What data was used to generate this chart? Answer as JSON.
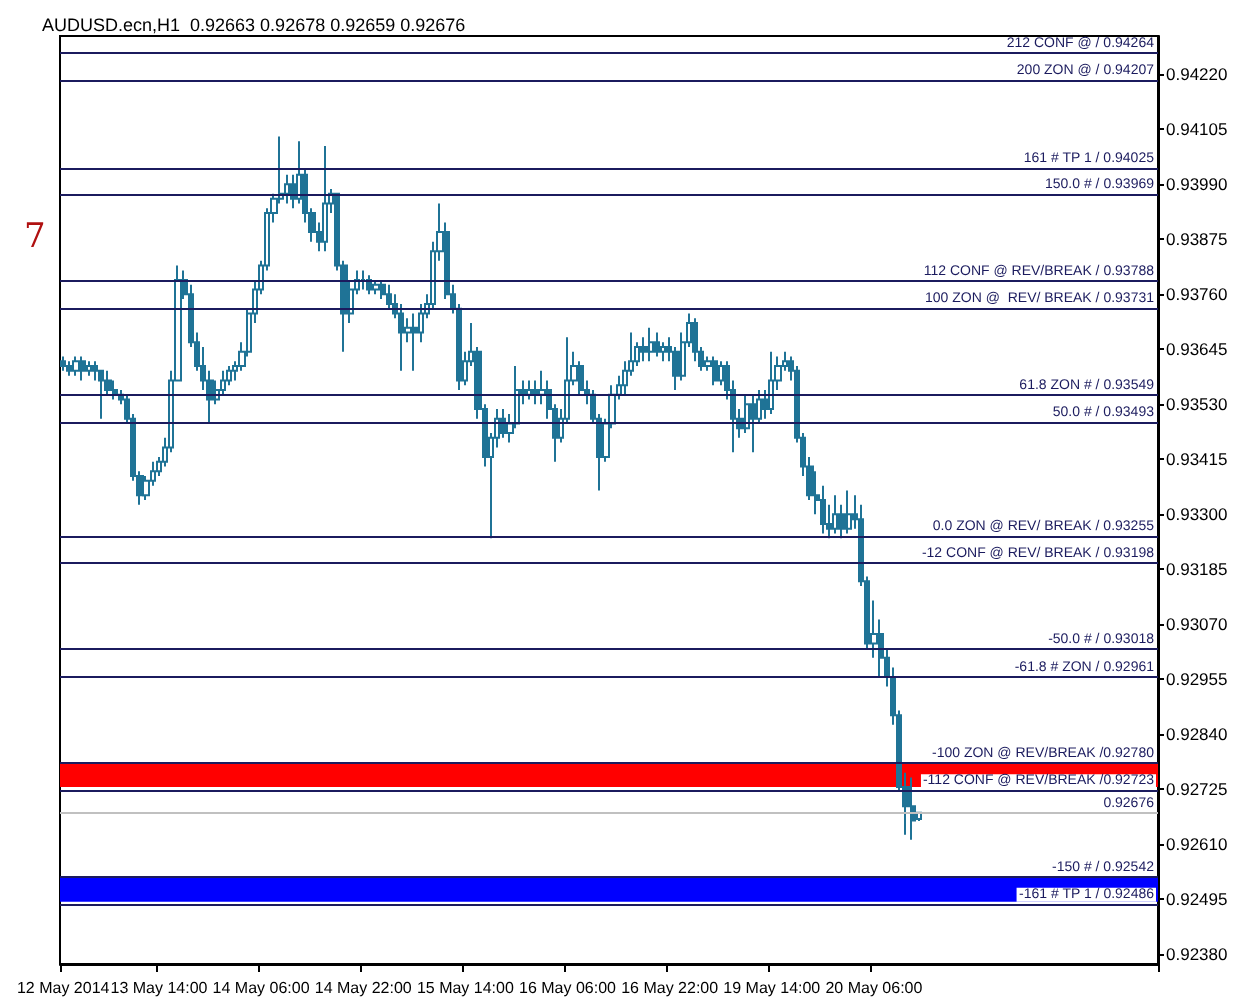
{
  "chart_data": {
    "type": "candlestick",
    "title": "AUDUSD.ecn,H1  0.92663 0.92678 0.92659 0.92676",
    "annotations": [
      "7"
    ],
    "color": "#1f7396",
    "categories": [
      "12 May 2014",
      null,
      null,
      null,
      null,
      null,
      null,
      null,
      null,
      null,
      null,
      null,
      null,
      null,
      null,
      "13 May 14:00",
      null,
      null,
      null,
      null,
      null,
      null,
      null,
      null,
      null,
      null,
      null,
      null,
      null,
      null,
      null,
      "14 May 06:00",
      null,
      null,
      null,
      null,
      null,
      null,
      null,
      null,
      null,
      null,
      null,
      null,
      null,
      null,
      null,
      "14 May 22:00",
      null,
      null,
      null,
      null,
      null,
      null,
      null,
      null,
      null,
      null,
      null,
      null,
      null,
      null,
      null,
      "15 May 14:00",
      null,
      null,
      null,
      null,
      null,
      null,
      null,
      null,
      null,
      null,
      null,
      null,
      null,
      null,
      null,
      "16 May 06:00",
      null,
      null,
      null,
      null,
      null,
      null,
      null,
      null,
      null,
      null,
      null,
      null,
      null,
      null,
      null,
      "16 May 22:00",
      null,
      null,
      null,
      null,
      null,
      null,
      null,
      null,
      null,
      null,
      null,
      null,
      null,
      null,
      null,
      "19 May 14:00",
      null,
      null,
      null,
      null,
      null,
      null,
      null,
      null,
      null,
      null,
      null,
      null,
      null,
      null,
      null,
      "20 May 06:00",
      null,
      null,
      null,
      null,
      null,
      null,
      null,
      null,
      null,
      null,
      null,
      null,
      null,
      null,
      null,
      null,
      null,
      null,
      null,
      null,
      null,
      null,
      null,
      null,
      null,
      null,
      null,
      null,
      null,
      null,
      null,
      null,
      null,
      null,
      null,
      null,
      null,
      null,
      null,
      null,
      null,
      null,
      null,
      null
    ],
    "ohlc": [
      [
        0.9362,
        0.9363,
        0.936,
        0.9361
      ],
      [
        0.9361,
        0.9362,
        0.9359,
        0.936
      ],
      [
        0.936,
        0.9363,
        0.9359,
        0.9362
      ],
      [
        0.9362,
        0.9363,
        0.9358,
        0.936
      ],
      [
        0.936,
        0.9362,
        0.9359,
        0.9361
      ],
      [
        0.9361,
        0.9362,
        0.9358,
        0.936
      ],
      [
        0.936,
        0.936,
        0.935,
        0.9358
      ],
      [
        0.9358,
        0.936,
        0.9355,
        0.9356
      ],
      [
        0.9356,
        0.9358,
        0.9354,
        0.9355
      ],
      [
        0.9355,
        0.9356,
        0.9353,
        0.9354
      ],
      [
        0.9354,
        0.9355,
        0.9349,
        0.935
      ],
      [
        0.935,
        0.9351,
        0.9337,
        0.9338
      ],
      [
        0.9338,
        0.9339,
        0.9332,
        0.9334
      ],
      [
        0.9334,
        0.9338,
        0.9333,
        0.9337
      ],
      [
        0.9337,
        0.9341,
        0.9336,
        0.9339
      ],
      [
        0.9339,
        0.9342,
        0.9338,
        0.9341
      ],
      [
        0.9341,
        0.9346,
        0.934,
        0.9344
      ],
      [
        0.9344,
        0.936,
        0.9343,
        0.9358
      ],
      [
        0.9358,
        0.9382,
        0.9358,
        0.9379
      ],
      [
        0.9379,
        0.9381,
        0.9375,
        0.9376
      ],
      [
        0.9376,
        0.9378,
        0.9365,
        0.9366
      ],
      [
        0.9366,
        0.9368,
        0.936,
        0.9361
      ],
      [
        0.9361,
        0.9365,
        0.9356,
        0.9358
      ],
      [
        0.9358,
        0.936,
        0.9349,
        0.9354
      ],
      [
        0.9354,
        0.9358,
        0.9353,
        0.9356
      ],
      [
        0.9356,
        0.936,
        0.9355,
        0.9358
      ],
      [
        0.9358,
        0.9361,
        0.9357,
        0.936
      ],
      [
        0.936,
        0.9362,
        0.9358,
        0.9361
      ],
      [
        0.9361,
        0.9366,
        0.936,
        0.9364
      ],
      [
        0.9364,
        0.9373,
        0.9363,
        0.9372
      ],
      [
        0.9372,
        0.9379,
        0.937,
        0.9377
      ],
      [
        0.9377,
        0.9383,
        0.9376,
        0.9382
      ],
      [
        0.9382,
        0.9394,
        0.9381,
        0.9393
      ],
      [
        0.9393,
        0.9397,
        0.9391,
        0.9396
      ],
      [
        0.9396,
        0.9409,
        0.9395,
        0.9397
      ],
      [
        0.9397,
        0.9401,
        0.9395,
        0.9399
      ],
      [
        0.9399,
        0.9401,
        0.9394,
        0.9396
      ],
      [
        0.9396,
        0.9408,
        0.9395,
        0.9401
      ],
      [
        0.9401,
        0.9402,
        0.9391,
        0.9393
      ],
      [
        0.9393,
        0.9394,
        0.9387,
        0.9389
      ],
      [
        0.9389,
        0.9391,
        0.9385,
        0.9387
      ],
      [
        0.9387,
        0.9407,
        0.9385,
        0.9395
      ],
      [
        0.9395,
        0.9398,
        0.9393,
        0.9397
      ],
      [
        0.9397,
        0.9397,
        0.9381,
        0.9382
      ],
      [
        0.9382,
        0.9383,
        0.9364,
        0.9372
      ],
      [
        0.9372,
        0.9379,
        0.937,
        0.9377
      ],
      [
        0.9377,
        0.9381,
        0.9376,
        0.9379
      ],
      [
        0.9379,
        0.9381,
        0.9377,
        0.9379
      ],
      [
        0.9379,
        0.938,
        0.9376,
        0.9377
      ],
      [
        0.9377,
        0.9379,
        0.9376,
        0.9378
      ],
      [
        0.9378,
        0.9379,
        0.9375,
        0.9376
      ],
      [
        0.9376,
        0.9378,
        0.9373,
        0.9374
      ],
      [
        0.9374,
        0.9376,
        0.9371,
        0.9372
      ],
      [
        0.9372,
        0.9374,
        0.936,
        0.9368
      ],
      [
        0.9368,
        0.9371,
        0.9366,
        0.9369
      ],
      [
        0.9369,
        0.9372,
        0.936,
        0.9368
      ],
      [
        0.9368,
        0.9374,
        0.9366,
        0.9372
      ],
      [
        0.9372,
        0.9376,
        0.9371,
        0.9374
      ],
      [
        0.9374,
        0.9387,
        0.9373,
        0.9385
      ],
      [
        0.9385,
        0.9395,
        0.9383,
        0.9389
      ],
      [
        0.9389,
        0.9391,
        0.9375,
        0.9376
      ],
      [
        0.9376,
        0.9378,
        0.9372,
        0.9373
      ],
      [
        0.9373,
        0.9374,
        0.9356,
        0.9358
      ],
      [
        0.9358,
        0.9364,
        0.9357,
        0.9362
      ],
      [
        0.9362,
        0.937,
        0.9361,
        0.9364
      ],
      [
        0.9364,
        0.9365,
        0.935,
        0.9352
      ],
      [
        0.9352,
        0.9353,
        0.934,
        0.9342
      ],
      [
        0.9342,
        0.9347,
        0.9325,
        0.9346
      ],
      [
        0.9346,
        0.9352,
        0.9344,
        0.935
      ],
      [
        0.935,
        0.9352,
        0.9346,
        0.9347
      ],
      [
        0.9347,
        0.9351,
        0.9345,
        0.9349
      ],
      [
        0.9349,
        0.9361,
        0.9348,
        0.9356
      ],
      [
        0.9356,
        0.9358,
        0.9353,
        0.9355
      ],
      [
        0.9355,
        0.9358,
        0.9354,
        0.9356
      ],
      [
        0.9356,
        0.9358,
        0.9353,
        0.9355
      ],
      [
        0.9355,
        0.936,
        0.9353,
        0.9356
      ],
      [
        0.9356,
        0.9358,
        0.935,
        0.9352
      ],
      [
        0.9352,
        0.9353,
        0.9341,
        0.9346
      ],
      [
        0.9346,
        0.9352,
        0.9345,
        0.935
      ],
      [
        0.935,
        0.9367,
        0.9349,
        0.9358
      ],
      [
        0.9358,
        0.9364,
        0.9357,
        0.9361
      ],
      [
        0.9361,
        0.9362,
        0.9355,
        0.9356
      ],
      [
        0.9356,
        0.9358,
        0.9353,
        0.9355
      ],
      [
        0.9355,
        0.9356,
        0.9349,
        0.935
      ],
      [
        0.935,
        0.9351,
        0.9335,
        0.9342
      ],
      [
        0.9342,
        0.935,
        0.9341,
        0.9349
      ],
      [
        0.9349,
        0.9357,
        0.9348,
        0.9355
      ],
      [
        0.9355,
        0.9359,
        0.9354,
        0.9357
      ],
      [
        0.9357,
        0.9362,
        0.9355,
        0.936
      ],
      [
        0.936,
        0.9368,
        0.9359,
        0.9362
      ],
      [
        0.9362,
        0.9366,
        0.9361,
        0.9365
      ],
      [
        0.9365,
        0.9367,
        0.9362,
        0.9364
      ],
      [
        0.9364,
        0.9369,
        0.9362,
        0.9366
      ],
      [
        0.9366,
        0.9368,
        0.9363,
        0.9364
      ],
      [
        0.9364,
        0.9366,
        0.9362,
        0.9365
      ],
      [
        0.9365,
        0.9367,
        0.9362,
        0.9364
      ],
      [
        0.9364,
        0.9365,
        0.9356,
        0.9359
      ],
      [
        0.9359,
        0.9368,
        0.9358,
        0.9366
      ],
      [
        0.9366,
        0.9372,
        0.9365,
        0.937
      ],
      [
        0.937,
        0.9371,
        0.9362,
        0.9364
      ],
      [
        0.9364,
        0.9365,
        0.936,
        0.9361
      ],
      [
        0.9361,
        0.9363,
        0.936,
        0.9362
      ],
      [
        0.9362,
        0.9363,
        0.9357,
        0.9358
      ],
      [
        0.9358,
        0.9362,
        0.9357,
        0.9361
      ],
      [
        0.9361,
        0.9362,
        0.9354,
        0.9356
      ],
      [
        0.9356,
        0.9358,
        0.9343,
        0.935
      ],
      [
        0.935,
        0.9352,
        0.9346,
        0.9348
      ],
      [
        0.9348,
        0.9355,
        0.9347,
        0.9353
      ],
      [
        0.9353,
        0.9355,
        0.9343,
        0.935
      ],
      [
        0.935,
        0.9356,
        0.9349,
        0.9354
      ],
      [
        0.9354,
        0.9356,
        0.935,
        0.9352
      ],
      [
        0.9352,
        0.9364,
        0.9351,
        0.9358
      ],
      [
        0.9358,
        0.9363,
        0.9356,
        0.9361
      ],
      [
        0.9361,
        0.9364,
        0.936,
        0.9362
      ],
      [
        0.9362,
        0.9363,
        0.9358,
        0.936
      ],
      [
        0.936,
        0.9361,
        0.9345,
        0.9346
      ],
      [
        0.9346,
        0.9347,
        0.9338,
        0.934
      ],
      [
        0.934,
        0.9342,
        0.9333,
        0.9334
      ],
      [
        0.9334,
        0.9339,
        0.933,
        0.9333
      ],
      [
        0.9333,
        0.9336,
        0.9326,
        0.9328
      ],
      [
        0.9328,
        0.9332,
        0.9325,
        0.9327
      ],
      [
        0.9327,
        0.9334,
        0.9326,
        0.933
      ],
      [
        0.933,
        0.9332,
        0.9325,
        0.9327
      ],
      [
        0.9327,
        0.9335,
        0.9326,
        0.933
      ],
      [
        0.933,
        0.9334,
        0.9327,
        0.9329
      ],
      [
        0.9329,
        0.9332,
        0.9315,
        0.9316
      ],
      [
        0.9316,
        0.9317,
        0.9302,
        0.9303
      ],
      [
        0.9303,
        0.9312,
        0.93,
        0.9305
      ],
      [
        0.9305,
        0.9308,
        0.9296,
        0.93
      ],
      [
        0.93,
        0.9302,
        0.9294,
        0.9296
      ],
      [
        0.9296,
        0.9298,
        0.9286,
        0.9288
      ],
      [
        0.9288,
        0.9289,
        0.9272,
        0.9273
      ],
      [
        0.9273,
        0.9276,
        0.9263,
        0.9269
      ],
      [
        0.9269,
        0.9275,
        0.9262,
        0.9266
      ],
      [
        0.92663,
        0.92678,
        0.92659,
        0.92676
      ],
      null,
      null,
      null,
      null,
      null,
      null,
      null,
      null,
      null,
      null,
      null,
      null,
      null,
      null,
      null,
      null,
      null,
      null,
      null,
      null,
      null,
      null,
      null,
      null,
      null,
      null,
      null,
      null,
      null,
      null,
      null,
      null,
      null,
      null,
      null,
      null,
      null
    ],
    "ylim": [
      0.9236,
      0.943
    ],
    "yticks": [
      {
        "value": 0.9238,
        "label": "0.92380"
      },
      {
        "value": 0.92495,
        "label": "0.92495"
      },
      {
        "value": 0.9261,
        "label": "0.92610"
      },
      {
        "value": 0.92725,
        "label": "0.92725"
      },
      {
        "value": 0.9284,
        "label": "0.92840"
      },
      {
        "value": 0.92955,
        "label": "0.92955"
      },
      {
        "value": 0.9307,
        "label": "0.93070"
      },
      {
        "value": 0.93185,
        "label": "0.93185"
      },
      {
        "value": 0.933,
        "label": "0.93300"
      },
      {
        "value": 0.93415,
        "label": "0.93415"
      },
      {
        "value": 0.9353,
        "label": "0.93530"
      },
      {
        "value": 0.93645,
        "label": "0.93645"
      },
      {
        "value": 0.9376,
        "label": "0.93760"
      },
      {
        "value": 0.93875,
        "label": "0.93875"
      },
      {
        "value": 0.9399,
        "label": "0.93990"
      },
      {
        "value": 0.94105,
        "label": "0.94105"
      },
      {
        "value": 0.9422,
        "label": "0.94220"
      }
    ],
    "ref_lines": [
      {
        "axis": "y",
        "value": 0.94264,
        "label": "212 CONF @ / 0.94264"
      },
      {
        "axis": "y",
        "value": 0.94207,
        "label": "200 ZON @ / 0.94207"
      },
      {
        "axis": "y",
        "value": 0.94025,
        "label": "161 # TP 1 / 0.94025"
      },
      {
        "axis": "y",
        "value": 0.93969,
        "label": "150.0 # / 0.93969"
      },
      {
        "axis": "y",
        "value": 0.93788,
        "label": "112 CONF @ REV/BREAK / 0.93788"
      },
      {
        "axis": "y",
        "value": 0.93731,
        "label": "100 ZON @  REV/ BREAK / 0.93731"
      },
      {
        "axis": "y",
        "value": 0.93549,
        "label": "61.8 ZON # / 0.93549"
      },
      {
        "axis": "y",
        "value": 0.93493,
        "label": "50.0 # / 0.93493"
      },
      {
        "axis": "y",
        "value": 0.93255,
        "label": "0.0 ZON @ REV/ BREAK / 0.93255"
      },
      {
        "axis": "y",
        "value": 0.93198,
        "label": "-12 CONF @ REV/ BREAK / 0.93198"
      },
      {
        "axis": "y",
        "value": 0.93018,
        "label": "-50.0 # / 0.93018"
      },
      {
        "axis": "y",
        "value": 0.92961,
        "label": "-61.8 # ZON / 0.92961"
      },
      {
        "axis": "y",
        "value": 0.9278,
        "label": "-100 ZON @ REV/BREAK /0.92780"
      },
      {
        "axis": "y",
        "value": 0.92723,
        "label": "-112 CONF @ REV/BREAK /0.92723"
      },
      {
        "axis": "y",
        "value": 0.92542,
        "label": "-150 # / 0.92542"
      },
      {
        "axis": "y",
        "value": 0.92486,
        "label": "-161 # TP 1 / 0.92486"
      },
      {
        "axis": "y",
        "value": 0.92676,
        "label": "0.92676",
        "color": "#c0c0c0"
      }
    ],
    "bands": [
      {
        "axis": "y",
        "from": 0.9273,
        "to": 0.9278,
        "color": "#ff0000"
      },
      {
        "axis": "y",
        "from": 0.9249,
        "to": 0.9254,
        "color": "#0000ff"
      }
    ]
  }
}
